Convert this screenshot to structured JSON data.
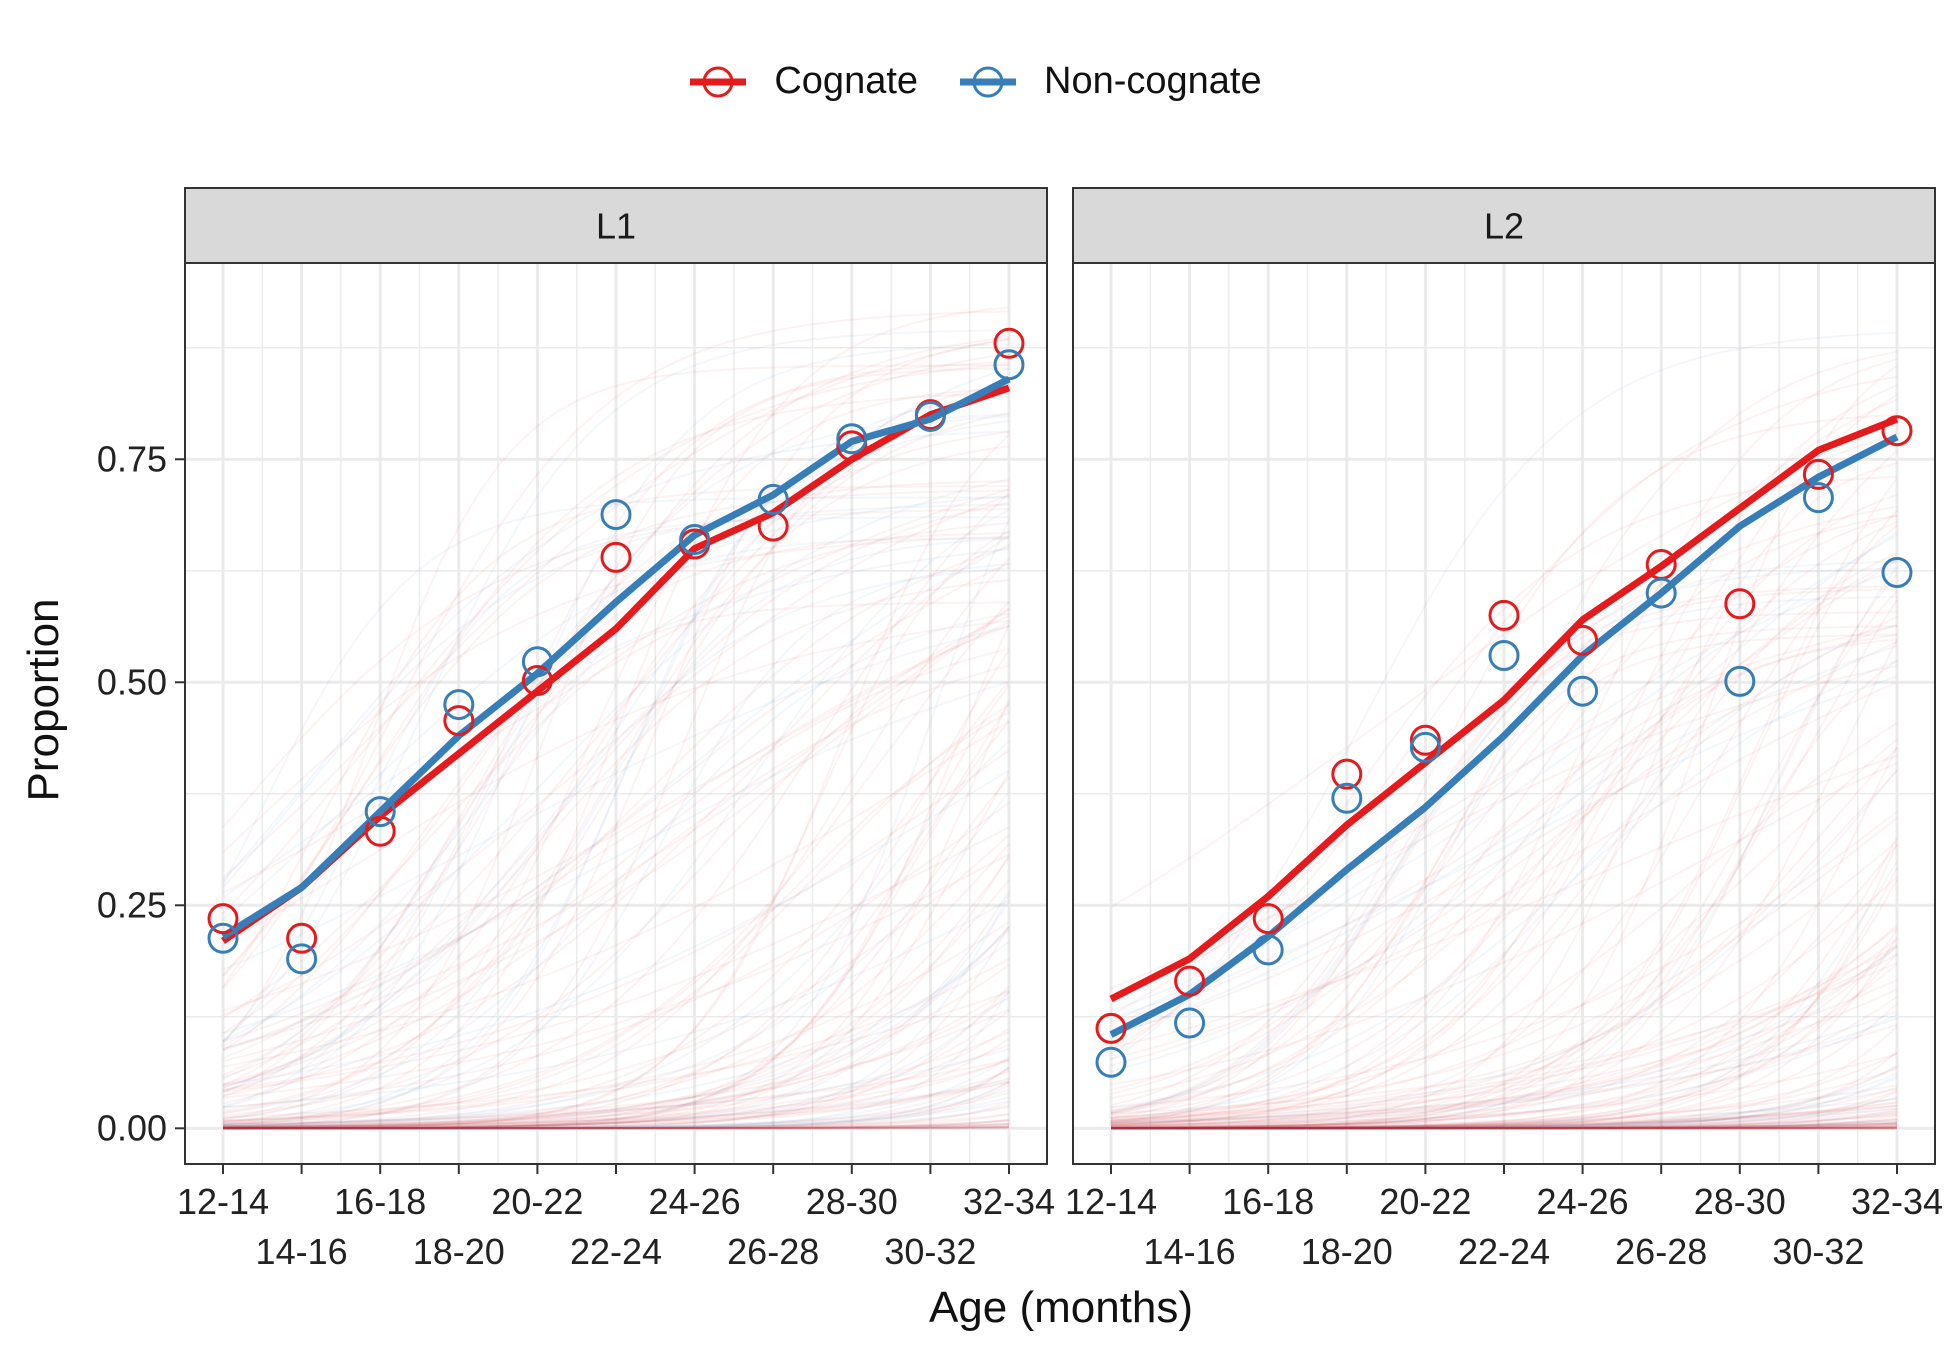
{
  "colors": {
    "cognate": "#e41a1c",
    "non_cognate": "#377eb8",
    "strip_bg": "#d9d9d9",
    "grid": "#ebebeb"
  },
  "legend": {
    "items": [
      "Cognate",
      "Non-cognate"
    ]
  },
  "chart_data": {
    "type": "line",
    "xlabel": "Age (months)",
    "ylabel": "Proportion",
    "ylim": [
      -0.04,
      0.97
    ],
    "yticks": [
      "0.00",
      "0.25",
      "0.50",
      "0.75"
    ],
    "categories": [
      "12-14",
      "14-16",
      "16-18",
      "18-20",
      "20-22",
      "22-24",
      "24-26",
      "26-28",
      "28-30",
      "30-32",
      "32-34"
    ],
    "grid": true,
    "legend_position": "top",
    "panels": [
      {
        "label": "L1",
        "series": [
          {
            "name": "Cognate",
            "kind": "fit",
            "values": [
              0.21,
              0.27,
              0.35,
              0.42,
              0.49,
              0.56,
              0.65,
              0.69,
              0.75,
              0.8,
              0.83
            ]
          },
          {
            "name": "Non-cognate",
            "kind": "fit",
            "values": [
              0.215,
              0.27,
              0.355,
              0.44,
              0.51,
              0.59,
              0.665,
              0.71,
              0.77,
              0.795,
              0.84
            ]
          },
          {
            "name": "Cognate",
            "kind": "observed",
            "values": [
              0.235,
              0.213,
              0.333,
              0.457,
              0.502,
              0.64,
              0.655,
              0.675,
              0.765,
              0.8,
              0.88
            ]
          },
          {
            "name": "Non-cognate",
            "kind": "observed",
            "values": [
              0.213,
              0.19,
              0.355,
              0.475,
              0.523,
              0.688,
              0.66,
              0.705,
              0.773,
              0.798,
              0.856
            ]
          }
        ]
      },
      {
        "label": "L2",
        "series": [
          {
            "name": "Cognate",
            "kind": "fit",
            "values": [
              0.145,
              0.19,
              0.26,
              0.34,
              0.41,
              0.48,
              0.57,
              0.63,
              0.695,
              0.76,
              0.795
            ]
          },
          {
            "name": "Non-cognate",
            "kind": "fit",
            "values": [
              0.105,
              0.15,
              0.215,
              0.29,
              0.36,
              0.44,
              0.53,
              0.6,
              0.675,
              0.73,
              0.775
            ]
          },
          {
            "name": "Cognate",
            "kind": "observed",
            "values": [
              0.112,
              0.165,
              0.235,
              0.397,
              0.435,
              0.575,
              0.547,
              0.632,
              0.588,
              0.733,
              0.782
            ]
          },
          {
            "name": "Non-cognate",
            "kind": "observed",
            "values": [
              0.074,
              0.118,
              0.2,
              0.37,
              0.427,
              0.53,
              0.49,
              0.6,
              0.501,
              0.707,
              0.623
            ]
          }
        ]
      }
    ]
  }
}
